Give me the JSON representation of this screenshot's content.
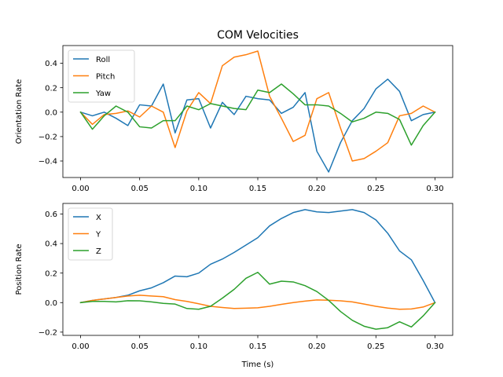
{
  "figure_title": "COM Velocities",
  "chart_data": [
    {
      "type": "line",
      "title": "COM Velocities",
      "xlabel": "",
      "ylabel": "Orientation Rate",
      "xlim": [
        -0.015,
        0.315
      ],
      "ylim": [
        -0.535,
        0.545
      ],
      "xticks": [
        0.0,
        0.05,
        0.1,
        0.15,
        0.2,
        0.25,
        0.3
      ],
      "xtick_labels": [
        "0.00",
        "0.05",
        "0.10",
        "0.15",
        "0.20",
        "0.25",
        "0.30"
      ],
      "yticks": [
        -0.4,
        -0.2,
        0.0,
        0.2,
        0.4
      ],
      "ytick_labels": [
        "−0.4",
        "−0.2",
        "0.0",
        "0.2",
        "0.4"
      ],
      "grid": false,
      "legend_position": "top-left",
      "x": [
        0.0,
        0.01,
        0.02,
        0.03,
        0.04,
        0.05,
        0.06,
        0.07,
        0.08,
        0.09,
        0.1,
        0.11,
        0.12,
        0.13,
        0.14,
        0.15,
        0.16,
        0.17,
        0.18,
        0.19,
        0.2,
        0.21,
        0.22,
        0.23,
        0.24,
        0.25,
        0.26,
        0.27,
        0.28,
        0.29,
        0.3
      ],
      "series": [
        {
          "name": "Roll",
          "color": "#1f77b4",
          "values": [
            0.0,
            -0.03,
            0.0,
            -0.05,
            -0.11,
            0.06,
            0.05,
            0.23,
            -0.17,
            0.1,
            0.11,
            -0.13,
            0.08,
            -0.02,
            0.13,
            0.11,
            0.1,
            -0.01,
            0.04,
            0.16,
            -0.32,
            -0.49,
            -0.25,
            -0.07,
            0.03,
            0.19,
            0.27,
            0.17,
            -0.07,
            -0.02,
            0.0
          ]
        },
        {
          "name": "Pitch",
          "color": "#ff7f0e",
          "values": [
            0.0,
            -0.1,
            -0.02,
            -0.01,
            0.01,
            -0.04,
            0.05,
            0.0,
            -0.29,
            0.01,
            0.16,
            0.07,
            0.38,
            0.45,
            0.47,
            0.5,
            0.13,
            -0.05,
            -0.24,
            -0.19,
            0.11,
            0.16,
            -0.13,
            -0.4,
            -0.38,
            -0.32,
            -0.25,
            -0.03,
            -0.01,
            0.05,
            0.0
          ]
        },
        {
          "name": "Yaw",
          "color": "#2ca02c",
          "values": [
            0.0,
            -0.14,
            -0.03,
            0.05,
            0.0,
            -0.12,
            -0.13,
            -0.07,
            -0.07,
            0.05,
            0.02,
            0.07,
            0.05,
            0.03,
            0.02,
            0.18,
            0.16,
            0.23,
            0.15,
            0.06,
            0.06,
            0.05,
            -0.01,
            -0.08,
            -0.05,
            0.0,
            -0.01,
            -0.06,
            -0.27,
            -0.11,
            0.0
          ]
        }
      ]
    },
    {
      "type": "line",
      "title": "",
      "xlabel": "Time (s)",
      "ylabel": "Position Rate",
      "xlim": [
        -0.015,
        0.315
      ],
      "ylim": [
        -0.222,
        0.672
      ],
      "xticks": [
        0.0,
        0.05,
        0.1,
        0.15,
        0.2,
        0.25,
        0.3
      ],
      "xtick_labels": [
        "0.00",
        "0.05",
        "0.10",
        "0.15",
        "0.20",
        "0.25",
        "0.30"
      ],
      "yticks": [
        -0.2,
        0.0,
        0.2,
        0.4,
        0.6
      ],
      "ytick_labels": [
        "−0.2",
        "0.0",
        "0.2",
        "0.4",
        "0.6"
      ],
      "grid": false,
      "legend_position": "top-left",
      "x": [
        0.0,
        0.01,
        0.02,
        0.03,
        0.04,
        0.05,
        0.06,
        0.07,
        0.08,
        0.09,
        0.1,
        0.11,
        0.12,
        0.13,
        0.14,
        0.15,
        0.16,
        0.17,
        0.18,
        0.19,
        0.2,
        0.21,
        0.22,
        0.23,
        0.24,
        0.25,
        0.26,
        0.27,
        0.28,
        0.29,
        0.3
      ],
      "series": [
        {
          "name": "X",
          "color": "#1f77b4",
          "values": [
            0.0,
            0.015,
            0.025,
            0.035,
            0.05,
            0.08,
            0.1,
            0.135,
            0.18,
            0.175,
            0.2,
            0.26,
            0.295,
            0.34,
            0.39,
            0.44,
            0.52,
            0.57,
            0.61,
            0.63,
            0.615,
            0.61,
            0.62,
            0.63,
            0.61,
            0.56,
            0.47,
            0.35,
            0.29,
            0.15,
            0.0
          ]
        },
        {
          "name": "Y",
          "color": "#ff7f0e",
          "values": [
            0.0,
            0.015,
            0.025,
            0.035,
            0.045,
            0.05,
            0.045,
            0.04,
            0.02,
            0.008,
            -0.008,
            -0.025,
            -0.033,
            -0.04,
            -0.038,
            -0.035,
            -0.025,
            -0.012,
            0.0,
            0.01,
            0.018,
            0.016,
            0.012,
            0.005,
            -0.01,
            -0.025,
            -0.037,
            -0.045,
            -0.043,
            -0.03,
            0.0
          ]
        },
        {
          "name": "Z",
          "color": "#2ca02c",
          "values": [
            0.0,
            0.008,
            0.008,
            0.005,
            0.013,
            0.012,
            0.005,
            -0.005,
            -0.01,
            -0.04,
            -0.045,
            -0.025,
            0.03,
            0.09,
            0.165,
            0.205,
            0.125,
            0.145,
            0.14,
            0.115,
            0.075,
            0.015,
            -0.06,
            -0.12,
            -0.16,
            -0.18,
            -0.17,
            -0.13,
            -0.165,
            -0.09,
            0.0
          ]
        }
      ]
    }
  ]
}
